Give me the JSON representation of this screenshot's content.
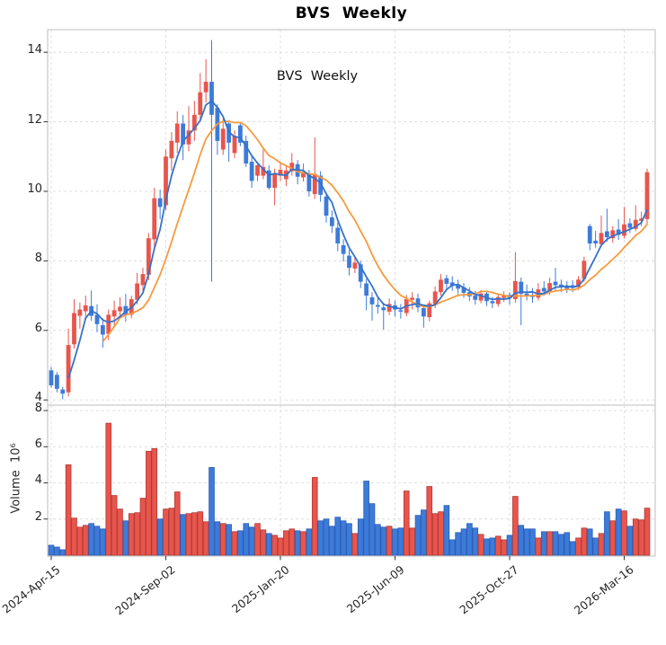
{
  "title": "BVS  Weekly",
  "annotation": "BVS  Weekly",
  "price_axis": {
    "tick_labels": [
      "14",
      "12",
      "10",
      "8",
      "6",
      "4"
    ],
    "ticks": [
      14,
      12,
      10,
      8,
      6,
      4
    ],
    "range": [
      3.85,
      14.65
    ]
  },
  "volume_axis": {
    "label": "Volume  10⁶",
    "tick_labels": [
      "8",
      "6",
      "4",
      "2"
    ],
    "ticks": [
      8,
      6,
      4,
      2
    ],
    "range": [
      0,
      8.3
    ]
  },
  "x_axis": {
    "tick_labels": [
      "2024-Apr-15",
      "2024-Sep-02",
      "2025-Jan-20",
      "2025-Jun-09",
      "2025-Oct-27",
      "2026-Mar-16"
    ],
    "tick_indices": [
      0,
      20,
      40,
      60,
      80,
      100
    ]
  },
  "colors": {
    "up": "#e8554d",
    "up_edge": "#b03a34",
    "down": "#3d7bd8",
    "down_edge": "#2a5cb8",
    "ma_fast": "#3672c8",
    "ma_slow": "#f79a3e",
    "grid": "#dcdcdc",
    "spine": "#bdbdbd",
    "tick": "#333333",
    "text": "#262626",
    "background": "#ffffff"
  },
  "chart_data": {
    "type": "candlestick+volume",
    "symbol": "BVS",
    "frequency": "Weekly",
    "title": "BVS  Weekly",
    "legend_position": "none",
    "grid": true,
    "moving_averages": [
      4,
      10
    ],
    "volume_unit": "millions",
    "price_range": [
      3.85,
      14.65
    ],
    "volume_range_millions": [
      0,
      8.3
    ],
    "ohlcv": [
      [
        4.85,
        4.95,
        4.35,
        4.42,
        0.55
      ],
      [
        4.72,
        4.8,
        4.22,
        4.32,
        0.45
      ],
      [
        4.3,
        4.38,
        4.02,
        4.18,
        0.3
      ],
      [
        4.22,
        6.05,
        4.1,
        5.58,
        5.0
      ],
      [
        5.6,
        6.9,
        5.48,
        6.5,
        2.05
      ],
      [
        6.42,
        6.8,
        6.05,
        6.6,
        1.55
      ],
      [
        6.55,
        7.0,
        6.3,
        6.72,
        1.65
      ],
      [
        6.7,
        7.15,
        6.28,
        6.42,
        1.75
      ],
      [
        6.45,
        6.75,
        5.95,
        6.18,
        1.6
      ],
      [
        6.15,
        6.35,
        5.5,
        5.88,
        1.45
      ],
      [
        5.9,
        6.6,
        5.72,
        6.45,
        7.3
      ],
      [
        6.4,
        6.85,
        6.1,
        6.58,
        3.3
      ],
      [
        6.55,
        6.95,
        6.4,
        6.68,
        2.55
      ],
      [
        6.7,
        7.05,
        6.25,
        6.45,
        1.9
      ],
      [
        6.45,
        7.0,
        6.35,
        6.9,
        2.3
      ],
      [
        6.88,
        7.65,
        6.75,
        7.35,
        2.35
      ],
      [
        7.3,
        7.8,
        7.1,
        7.62,
        3.15
      ],
      [
        7.6,
        8.8,
        7.45,
        8.65,
        5.75
      ],
      [
        8.62,
        10.1,
        8.4,
        9.8,
        5.9
      ],
      [
        9.8,
        10.05,
        9.2,
        9.55,
        2.0
      ],
      [
        9.6,
        11.2,
        9.45,
        11.0,
        2.55
      ],
      [
        10.95,
        11.7,
        10.6,
        11.45,
        2.6
      ],
      [
        11.4,
        12.3,
        11.1,
        11.95,
        3.5
      ],
      [
        11.95,
        12.2,
        10.9,
        11.35,
        2.25
      ],
      [
        11.35,
        12.45,
        11.15,
        11.75,
        2.3
      ],
      [
        11.75,
        12.6,
        11.45,
        12.2,
        2.35
      ],
      [
        12.2,
        13.4,
        12.0,
        12.85,
        2.4
      ],
      [
        12.85,
        13.8,
        12.55,
        13.15,
        1.85
      ],
      [
        13.15,
        14.35,
        7.4,
        12.2,
        4.85
      ],
      [
        12.4,
        12.5,
        11.05,
        11.45,
        1.85
      ],
      [
        11.2,
        12.1,
        11.05,
        11.8,
        1.75
      ],
      [
        11.95,
        12.05,
        10.85,
        11.4,
        1.7
      ],
      [
        11.1,
        11.75,
        10.95,
        11.6,
        1.3
      ],
      [
        11.9,
        12.0,
        11.3,
        11.4,
        1.35
      ],
      [
        11.45,
        11.6,
        10.7,
        10.8,
        1.75
      ],
      [
        10.85,
        11.0,
        10.1,
        10.3,
        1.55
      ],
      [
        10.45,
        10.85,
        10.3,
        10.75,
        1.75
      ],
      [
        10.45,
        11.2,
        10.35,
        10.7,
        1.4
      ],
      [
        10.6,
        10.75,
        10.05,
        10.1,
        1.2
      ],
      [
        10.1,
        10.65,
        9.6,
        10.5,
        1.1
      ],
      [
        10.45,
        10.8,
        10.3,
        10.62,
        0.95
      ],
      [
        10.35,
        10.75,
        10.15,
        10.6,
        1.35
      ],
      [
        10.58,
        11.1,
        10.45,
        10.82,
        1.45
      ],
      [
        10.78,
        10.9,
        10.2,
        10.42,
        1.35
      ],
      [
        10.4,
        10.8,
        10.28,
        10.56,
        1.3
      ],
      [
        10.52,
        10.62,
        9.85,
        10.0,
        1.45
      ],
      [
        9.92,
        11.55,
        9.78,
        10.5,
        4.3
      ],
      [
        10.45,
        10.58,
        9.7,
        9.9,
        1.9
      ],
      [
        9.85,
        9.98,
        9.1,
        9.3,
        2.0
      ],
      [
        9.25,
        9.45,
        8.8,
        9.0,
        1.6
      ],
      [
        8.95,
        9.1,
        8.28,
        8.5,
        2.1
      ],
      [
        8.45,
        8.62,
        7.98,
        8.2,
        1.9
      ],
      [
        8.15,
        8.32,
        7.58,
        7.8,
        1.75
      ],
      [
        7.78,
        8.1,
        7.65,
        7.95,
        1.2
      ],
      [
        7.9,
        8.0,
        7.22,
        7.4,
        2.0
      ],
      [
        7.35,
        7.48,
        6.58,
        7.0,
        4.1
      ],
      [
        6.95,
        7.1,
        6.28,
        6.75,
        2.85
      ],
      [
        6.73,
        6.95,
        6.48,
        6.68,
        1.7
      ],
      [
        6.66,
        6.8,
        6.02,
        6.58,
        1.55
      ],
      [
        6.54,
        6.92,
        6.44,
        6.76,
        1.6
      ],
      [
        6.72,
        6.86,
        6.4,
        6.6,
        1.45
      ],
      [
        6.58,
        6.76,
        6.34,
        6.54,
        1.5
      ],
      [
        6.5,
        7.02,
        6.4,
        6.9,
        3.55
      ],
      [
        6.88,
        7.1,
        6.6,
        6.94,
        1.5
      ],
      [
        6.92,
        7.06,
        6.52,
        6.66,
        2.2
      ],
      [
        6.64,
        6.74,
        6.08,
        6.4,
        2.5
      ],
      [
        6.38,
        6.86,
        6.26,
        6.78,
        3.8
      ],
      [
        6.76,
        7.26,
        6.64,
        7.12,
        2.3
      ],
      [
        7.1,
        7.62,
        7.0,
        7.46,
        2.4
      ],
      [
        7.5,
        7.6,
        7.18,
        7.34,
        2.75
      ],
      [
        7.38,
        7.56,
        7.14,
        7.28,
        0.85
      ],
      [
        7.32,
        7.46,
        7.04,
        7.2,
        1.25
      ],
      [
        7.24,
        7.36,
        6.94,
        7.08,
        1.45
      ],
      [
        7.1,
        7.24,
        6.84,
        6.98,
        1.75
      ],
      [
        7.0,
        7.14,
        6.74,
        6.88,
        1.5
      ],
      [
        6.86,
        7.16,
        6.78,
        7.06,
        1.15
      ],
      [
        7.06,
        7.12,
        6.7,
        6.84,
        0.9
      ],
      [
        6.84,
        6.96,
        6.64,
        6.78,
        0.95
      ],
      [
        6.76,
        7.06,
        6.68,
        6.96,
        1.05
      ],
      [
        6.94,
        7.12,
        6.82,
        7.02,
        0.85
      ],
      [
        7.02,
        7.1,
        6.74,
        6.92,
        1.1
      ],
      [
        6.9,
        8.25,
        6.8,
        7.42,
        3.25
      ],
      [
        7.4,
        7.52,
        6.15,
        7.05,
        1.65
      ],
      [
        7.06,
        7.32,
        6.86,
        7.0,
        1.45
      ],
      [
        7.02,
        7.22,
        6.8,
        6.96,
        1.45
      ],
      [
        6.94,
        7.36,
        6.86,
        7.18,
        0.95
      ],
      [
        7.22,
        7.42,
        7.0,
        7.12,
        1.3
      ],
      [
        7.1,
        7.52,
        7.02,
        7.36,
        1.3
      ],
      [
        7.4,
        7.8,
        7.16,
        7.3,
        1.3
      ],
      [
        7.32,
        7.46,
        7.1,
        7.24,
        1.15
      ],
      [
        7.28,
        7.42,
        7.08,
        7.2,
        1.25
      ],
      [
        7.3,
        7.44,
        7.1,
        7.22,
        0.75
      ],
      [
        7.24,
        7.56,
        7.16,
        7.46,
        0.95
      ],
      [
        7.48,
        8.12,
        7.4,
        8.0,
        1.5
      ],
      [
        9.0,
        9.06,
        8.3,
        8.5,
        1.45
      ],
      [
        8.58,
        8.86,
        8.38,
        8.5,
        0.95
      ],
      [
        8.48,
        9.3,
        8.4,
        8.8,
        1.2
      ],
      [
        8.85,
        9.5,
        8.55,
        8.68,
        2.4
      ],
      [
        8.65,
        9.0,
        8.52,
        8.88,
        1.9
      ],
      [
        8.9,
        9.2,
        8.6,
        8.75,
        2.55
      ],
      [
        8.72,
        9.55,
        8.65,
        9.05,
        2.45
      ],
      [
        9.08,
        9.22,
        8.8,
        8.95,
        1.6
      ],
      [
        8.92,
        9.6,
        8.85,
        9.18,
        2.0
      ],
      [
        9.15,
        9.42,
        9.0,
        9.22,
        1.95
      ],
      [
        9.2,
        10.65,
        9.05,
        10.55,
        2.6
      ]
    ]
  }
}
